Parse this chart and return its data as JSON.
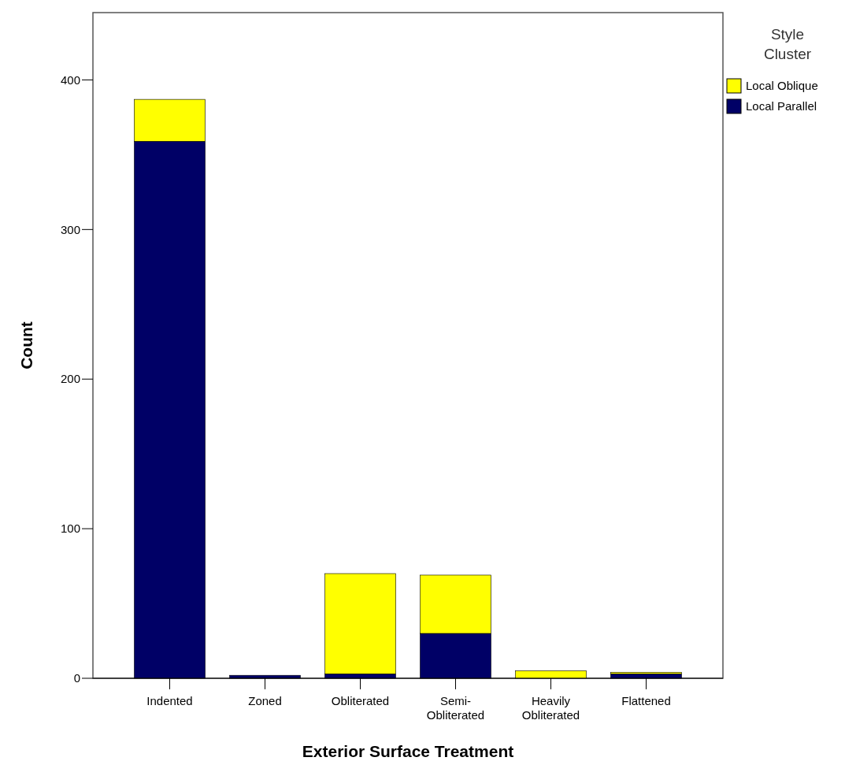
{
  "chart_data": {
    "type": "bar",
    "stacked": true,
    "xlabel": "Exterior Surface Treatment",
    "ylabel": "Count",
    "legend_title": "Style Cluster",
    "legend": "top right",
    "categories": [
      "Indented",
      "Zoned",
      "Obliterated",
      "Semi-Obliterated",
      "Heavily Obliterated",
      "Flattened"
    ],
    "series": [
      {
        "name": "Local Parallel",
        "color": "#000066",
        "values": [
          359,
          2,
          3,
          30,
          0,
          3
        ]
      },
      {
        "name": "Local Oblique",
        "color": "#ffff00",
        "values": [
          28,
          0,
          67,
          39,
          5,
          1
        ]
      }
    ],
    "ylim": [
      0,
      445
    ],
    "yticks": [
      0,
      100,
      200,
      300,
      400
    ],
    "grid": false
  }
}
